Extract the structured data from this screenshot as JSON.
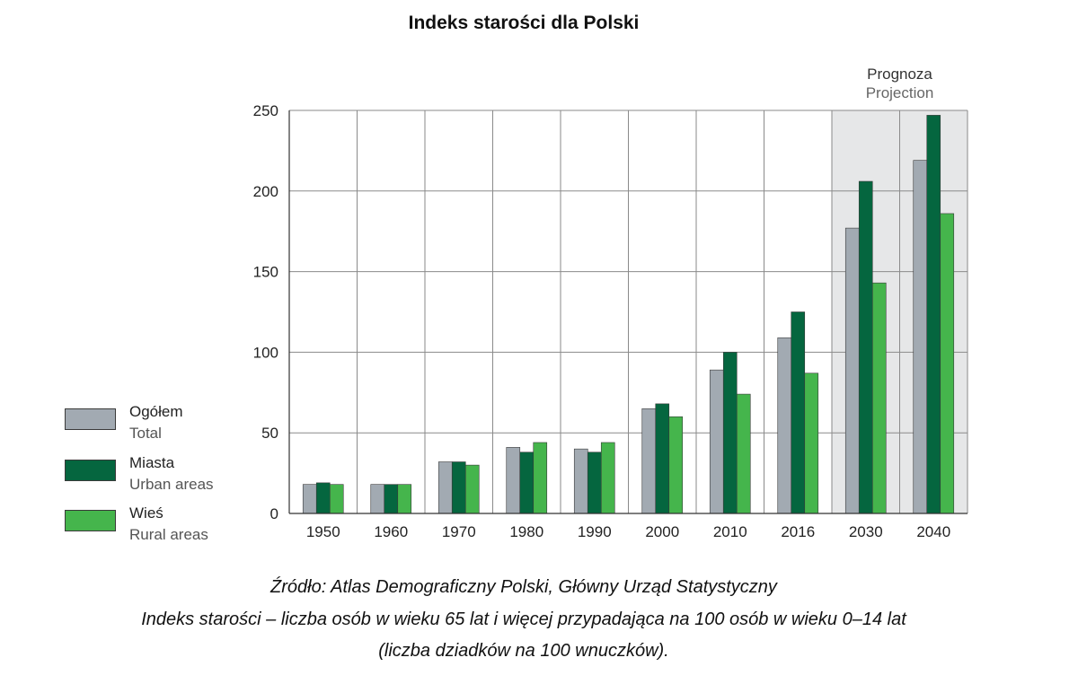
{
  "chart_data": {
    "type": "bar",
    "title": "Indeks starości dla Polski",
    "categories": [
      "1950",
      "1960",
      "1970",
      "1980",
      "1990",
      "2000",
      "2010",
      "2016",
      "2030",
      "2040"
    ],
    "series": [
      {
        "name_pl": "Ogółem",
        "name_en": "Total",
        "color": "#a2aab2",
        "values": [
          18,
          18,
          32,
          41,
          40,
          65,
          89,
          109,
          177,
          219
        ]
      },
      {
        "name_pl": "Miasta",
        "name_en": "Urban areas",
        "color": "#05663f",
        "values": [
          19,
          18,
          32,
          38,
          38,
          68,
          100,
          125,
          206,
          247
        ]
      },
      {
        "name_pl": "Wieś",
        "name_en": "Rural areas",
        "color": "#45b54c",
        "values": [
          18,
          18,
          30,
          44,
          44,
          60,
          74,
          87,
          143,
          186
        ]
      }
    ],
    "ylim": [
      0,
      250
    ],
    "yticks": [
      0,
      50,
      100,
      150,
      200,
      250
    ],
    "grid": true,
    "legend_position": "left",
    "projection_band": {
      "label_pl": "Prognoza",
      "label_en": "Projection",
      "categories": [
        "2030",
        "2040"
      ],
      "color": "#e6e7e8"
    }
  },
  "footer": {
    "source": "Źródło: Atlas Demograficzny Polski, Główny Urząd Statystyczny",
    "note_line1": "Indeks starości – liczba osób w wieku 65 lat i więcej przypadająca na 100 osób w wieku 0–14 lat",
    "note_line2": "(liczba dziadków na 100 wnuczków)."
  }
}
